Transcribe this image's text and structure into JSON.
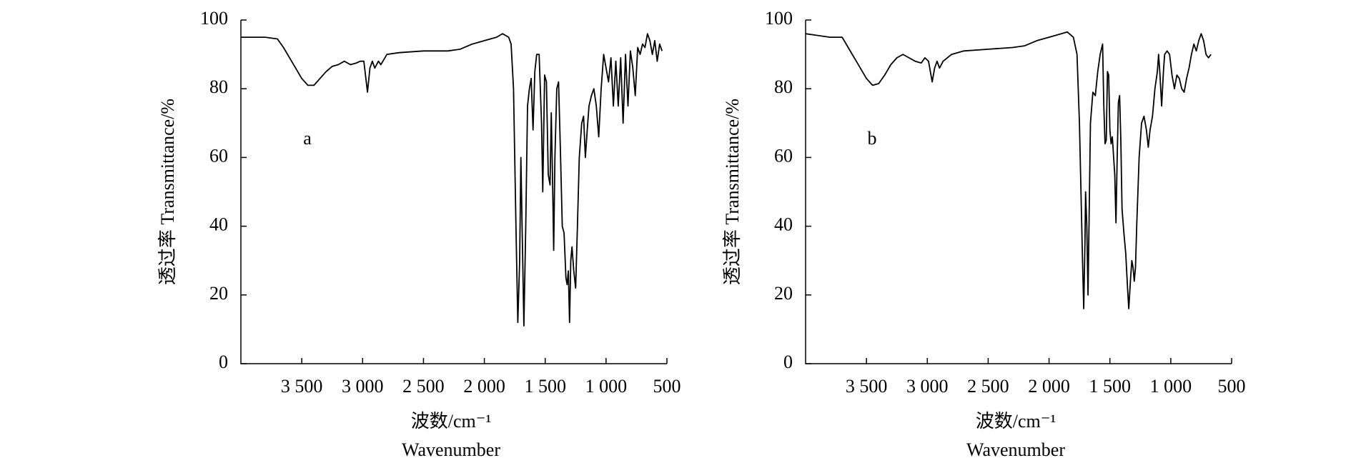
{
  "chart_data": [
    {
      "type": "line",
      "annotation": "a",
      "ylabel": "透过率 Transmittance/%",
      "xlabel": [
        "波数/cm⁻¹",
        "Wavenumber"
      ],
      "xlim": [
        4000,
        500
      ],
      "ylim": [
        0,
        100
      ],
      "xticks": [
        {
          "value": 3500,
          "label": "3 500"
        },
        {
          "value": 3000,
          "label": "3 000"
        },
        {
          "value": 2500,
          "label": "2 500"
        },
        {
          "value": 2000,
          "label": "2 000"
        },
        {
          "value": 1500,
          "label": "1 500"
        },
        {
          "value": 1000,
          "label": "1 000"
        },
        500
      ],
      "yticks": [
        0,
        20,
        40,
        60,
        80,
        100
      ],
      "color": "#000000",
      "x": [
        4000,
        3800,
        3700,
        3650,
        3600,
        3550,
        3500,
        3450,
        3400,
        3350,
        3300,
        3250,
        3200,
        3150,
        3100,
        3050,
        3020,
        2990,
        2960,
        2940,
        2920,
        2900,
        2870,
        2850,
        2800,
        2700,
        2500,
        2300,
        2200,
        2100,
        2000,
        1900,
        1850,
        1800,
        1780,
        1760,
        1740,
        1725,
        1710,
        1700,
        1690,
        1675,
        1660,
        1645,
        1630,
        1615,
        1600,
        1585,
        1570,
        1550,
        1530,
        1520,
        1505,
        1490,
        1475,
        1460,
        1450,
        1440,
        1430,
        1420,
        1405,
        1390,
        1375,
        1360,
        1345,
        1330,
        1320,
        1310,
        1300,
        1290,
        1280,
        1265,
        1250,
        1235,
        1220,
        1200,
        1185,
        1170,
        1155,
        1140,
        1120,
        1100,
        1080,
        1060,
        1040,
        1020,
        1000,
        980,
        960,
        940,
        920,
        900,
        880,
        860,
        840,
        820,
        800,
        780,
        760,
        740,
        720,
        700,
        680,
        660,
        640,
        620,
        600,
        580,
        560,
        540
      ],
      "values": [
        95,
        95,
        94.5,
        92,
        89,
        86,
        83,
        81,
        81,
        83,
        85,
        86.5,
        87,
        88,
        87,
        87.5,
        88,
        88,
        79,
        86,
        88,
        86,
        88,
        87,
        90,
        90.5,
        91,
        91,
        91.5,
        93,
        94,
        95,
        96,
        95,
        93,
        80,
        40,
        12,
        30,
        60,
        40,
        11,
        40,
        75,
        80,
        83,
        68,
        85,
        90,
        90,
        70,
        50,
        84,
        82,
        55,
        52,
        73,
        55,
        33,
        60,
        80,
        82,
        62,
        40,
        38,
        25,
        23,
        27,
        12,
        30,
        34,
        27,
        22,
        40,
        60,
        70,
        72,
        60,
        68,
        75,
        78,
        80,
        75,
        66,
        80,
        90,
        86,
        82,
        89,
        75,
        88,
        75,
        89,
        70,
        90,
        75,
        91,
        86,
        78,
        92,
        90,
        93,
        92,
        96,
        94,
        90,
        94,
        88,
        93,
        91
      ]
    },
    {
      "type": "line",
      "annotation": "b",
      "ylabel": "透过率 Transmittance/%",
      "xlabel": [
        "波数/cm⁻¹",
        "Wavenumber"
      ],
      "xlim": [
        4000,
        500
      ],
      "ylim": [
        0,
        100
      ],
      "xticks": [
        {
          "value": 3500,
          "label": "3 500"
        },
        {
          "value": 3000,
          "label": "3 000"
        },
        {
          "value": 2500,
          "label": "2 500"
        },
        {
          "value": 2000,
          "label": "2 000"
        },
        {
          "value": 1500,
          "label": "1 500"
        },
        {
          "value": 1000,
          "label": "1 000"
        },
        500
      ],
      "yticks": [
        0,
        20,
        40,
        60,
        80,
        100
      ],
      "color": "#000000",
      "x": [
        4000,
        3800,
        3700,
        3650,
        3600,
        3550,
        3500,
        3450,
        3400,
        3350,
        3300,
        3250,
        3200,
        3150,
        3100,
        3050,
        3020,
        2990,
        2960,
        2940,
        2920,
        2900,
        2870,
        2800,
        2700,
        2500,
        2300,
        2200,
        2100,
        2000,
        1900,
        1850,
        1800,
        1770,
        1750,
        1725,
        1715,
        1705,
        1700,
        1690,
        1680,
        1670,
        1660,
        1640,
        1620,
        1600,
        1580,
        1560,
        1550,
        1540,
        1530,
        1520,
        1510,
        1500,
        1490,
        1480,
        1460,
        1450,
        1440,
        1430,
        1420,
        1410,
        1400,
        1385,
        1370,
        1355,
        1345,
        1330,
        1320,
        1310,
        1300,
        1290,
        1280,
        1260,
        1240,
        1220,
        1200,
        1185,
        1170,
        1150,
        1130,
        1110,
        1100,
        1090,
        1075,
        1060,
        1050,
        1030,
        1010,
        990,
        970,
        950,
        930,
        910,
        890,
        870,
        850,
        830,
        810,
        790,
        770,
        750,
        730,
        710,
        690,
        670
      ],
      "values": [
        96,
        95,
        95,
        92,
        89,
        86,
        83,
        81,
        81.5,
        84,
        87,
        89,
        90,
        89,
        88,
        87.5,
        89,
        88,
        82,
        86,
        88,
        86,
        88,
        90,
        91,
        91.5,
        92,
        92.5,
        94,
        95,
        96,
        96.5,
        95,
        90,
        70,
        30,
        16,
        35,
        50,
        40,
        20,
        45,
        70,
        79,
        78,
        85,
        90,
        93,
        75,
        64,
        65,
        85,
        84,
        68,
        64,
        66,
        55,
        41,
        60,
        76,
        78,
        65,
        45,
        38,
        32,
        22,
        16,
        25,
        30,
        28,
        24,
        28,
        40,
        60,
        70,
        72,
        68,
        63,
        68,
        72,
        80,
        85,
        90,
        85,
        75,
        85,
        90,
        91,
        90,
        84,
        80,
        84,
        83,
        80,
        79,
        83,
        86,
        90,
        93,
        91,
        94,
        96,
        94,
        90,
        89,
        90
      ]
    }
  ]
}
